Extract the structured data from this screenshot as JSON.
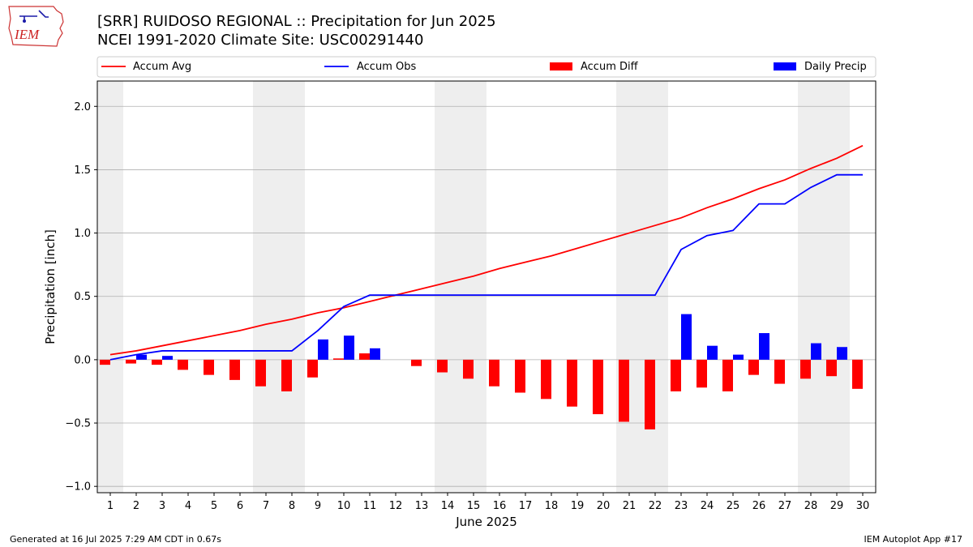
{
  "header": {
    "title_line1": "[SRR] RUIDOSO REGIONAL :: Precipitation for Jun 2025",
    "title_line2": "NCEI 1991-2020 Climate Site: USC00291440",
    "logo_text": "IEM"
  },
  "footer": {
    "generated": "Generated at 16 Jul 2025 7:29 AM CDT in 0.67s",
    "app": "IEM Autoplot App #17"
  },
  "colors": {
    "accum_avg": "#ff0000",
    "accum_obs": "#0000ff",
    "accum_diff": "#ff0000",
    "daily_precip": "#0000ff",
    "weekend_shade": "#eeeeee",
    "grid": "#b0b0b0"
  },
  "chart_data": {
    "type": "bar",
    "xlabel": "June 2025",
    "ylabel": "Precipitation [inch]",
    "ylim": [
      -1.05,
      2.2
    ],
    "yticks": [
      -1.0,
      -0.5,
      0.0,
      0.5,
      1.0,
      1.5,
      2.0
    ],
    "grid": true,
    "legend_placement": "top, above plot",
    "legend": [
      "Accum Avg",
      "Accum Obs",
      "Accum Diff",
      "Daily Precip"
    ],
    "shaded_days": [
      [
        1,
        1
      ],
      [
        7,
        8
      ],
      [
        14,
        15
      ],
      [
        21,
        22
      ],
      [
        28,
        29
      ]
    ],
    "x": [
      1,
      2,
      3,
      4,
      5,
      6,
      7,
      8,
      9,
      10,
      11,
      12,
      13,
      14,
      15,
      16,
      17,
      18,
      19,
      20,
      21,
      22,
      23,
      24,
      25,
      26,
      27,
      28,
      29,
      30
    ],
    "series": [
      {
        "name": "Accum Avg",
        "kind": "line",
        "values": [
          0.04,
          0.07,
          0.11,
          0.15,
          0.19,
          0.23,
          0.28,
          0.32,
          0.37,
          0.41,
          0.46,
          0.51,
          0.56,
          0.61,
          0.66,
          0.72,
          0.77,
          0.82,
          0.88,
          0.94,
          1.0,
          1.06,
          1.12,
          1.2,
          1.27,
          1.35,
          1.42,
          1.51,
          1.59,
          1.69
        ]
      },
      {
        "name": "Accum Obs",
        "kind": "line",
        "values": [
          0.0,
          0.04,
          0.07,
          0.07,
          0.07,
          0.07,
          0.07,
          0.07,
          0.23,
          0.42,
          0.51,
          0.51,
          0.51,
          0.51,
          0.51,
          0.51,
          0.51,
          0.51,
          0.51,
          0.51,
          0.51,
          0.51,
          0.87,
          0.98,
          1.02,
          1.23,
          1.23,
          1.36,
          1.46,
          1.46
        ]
      },
      {
        "name": "Accum Diff",
        "kind": "bar",
        "values": [
          -0.04,
          -0.03,
          -0.04,
          -0.08,
          -0.12,
          -0.16,
          -0.21,
          -0.25,
          -0.14,
          0.01,
          0.05,
          0.0,
          -0.05,
          -0.1,
          -0.15,
          -0.21,
          -0.26,
          -0.31,
          -0.37,
          -0.43,
          -0.49,
          -0.55,
          -0.25,
          -0.22,
          -0.25,
          -0.12,
          -0.19,
          -0.15,
          -0.13,
          -0.23
        ]
      },
      {
        "name": "Daily Precip",
        "kind": "bar",
        "values": [
          0.0,
          0.04,
          0.03,
          0.0,
          0.0,
          0.0,
          0.0,
          0.0,
          0.16,
          0.19,
          0.09,
          0.0,
          0.0,
          0.0,
          0.0,
          0.0,
          0.0,
          0.0,
          0.0,
          0.0,
          0.0,
          0.0,
          0.36,
          0.11,
          0.04,
          0.21,
          0.0,
          0.13,
          0.1,
          0.0
        ]
      }
    ]
  }
}
